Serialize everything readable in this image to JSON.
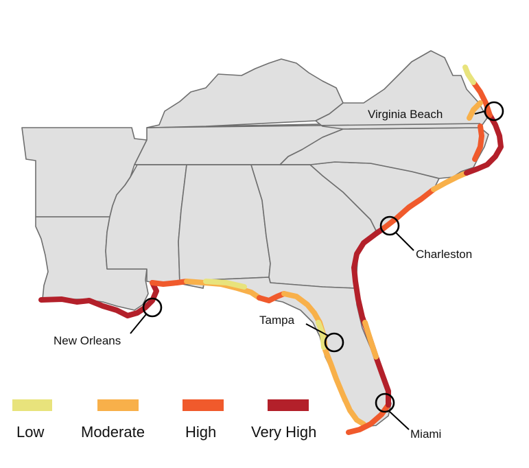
{
  "legend": {
    "items": [
      {
        "label": "Low",
        "color": "#e8e37c"
      },
      {
        "label": "Moderate",
        "color": "#f8b04a"
      },
      {
        "label": "High",
        "color": "#f05a2c"
      },
      {
        "label": "Very High",
        "color": "#b3202a"
      }
    ]
  },
  "cities": {
    "virginia_beach": "Virginia Beach",
    "charleston": "Charleston",
    "new_orleans": "New Orleans",
    "tampa": "Tampa",
    "miami": "Miami"
  },
  "colors": {
    "land": "#e0e0e0",
    "border": "#6e6e6e",
    "low": "#e8e37c",
    "moderate": "#f8b04a",
    "high": "#f05a2c",
    "very_high": "#b3202a"
  }
}
